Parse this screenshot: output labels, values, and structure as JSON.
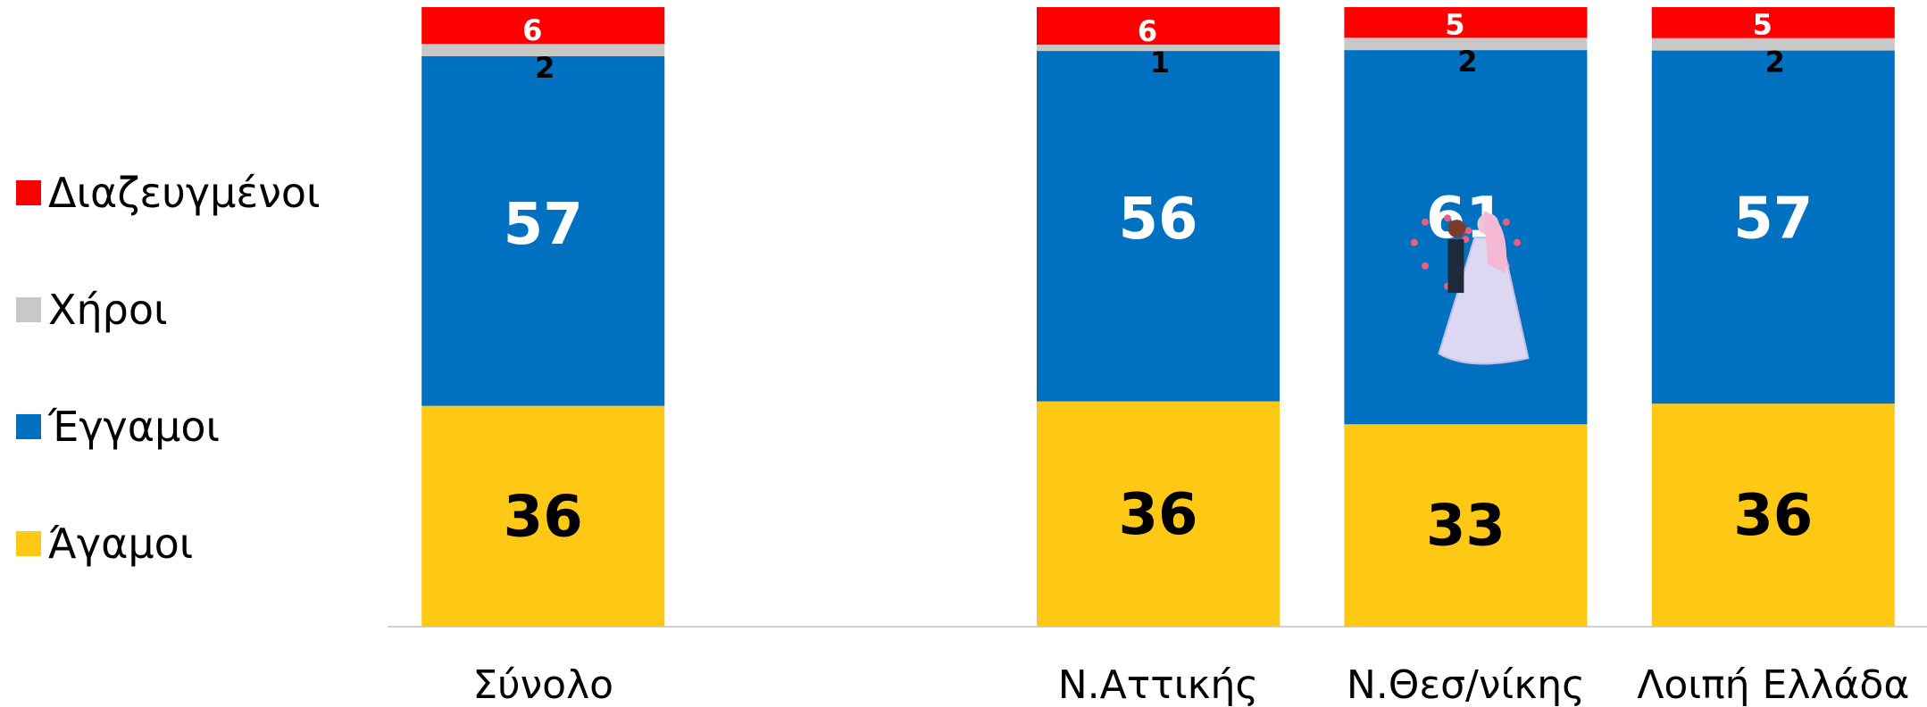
{
  "chart_data": {
    "type": "bar",
    "stacked": true,
    "normalized_percent": true,
    "categories": [
      "Σύνολο",
      "",
      "Ν.Αττικής",
      "Ν.Θεσ/νίκης",
      "Λοιπή Ελλάδα"
    ],
    "series": [
      {
        "name": "Άγαμοι",
        "color": "#FFC814",
        "label_color": "#000000",
        "values": [
          36,
          null,
          36,
          33,
          36
        ]
      },
      {
        "name": "Έγγαμοι",
        "color": "#0070C0",
        "label_color": "#FFFFFF",
        "values": [
          57,
          null,
          56,
          61,
          57
        ]
      },
      {
        "name": "Χήροι",
        "color": "#C8C8C8",
        "label_color": "#000000",
        "values": [
          2,
          null,
          1,
          2,
          2
        ]
      },
      {
        "name": "Διαζευγμένοι",
        "color": "#FF0000",
        "label_color": "#FFFFFF",
        "values": [
          6,
          null,
          6,
          5,
          5
        ]
      }
    ],
    "legend": {
      "position": "left",
      "order": [
        "Διαζευγμένοι",
        "Χήροι",
        "Έγγαμοι",
        "Άγαμοι"
      ]
    },
    "y_axis": {
      "visible": false,
      "range": [
        0,
        100
      ]
    },
    "grid": false,
    "decoration": "wedding-couple-icon"
  }
}
